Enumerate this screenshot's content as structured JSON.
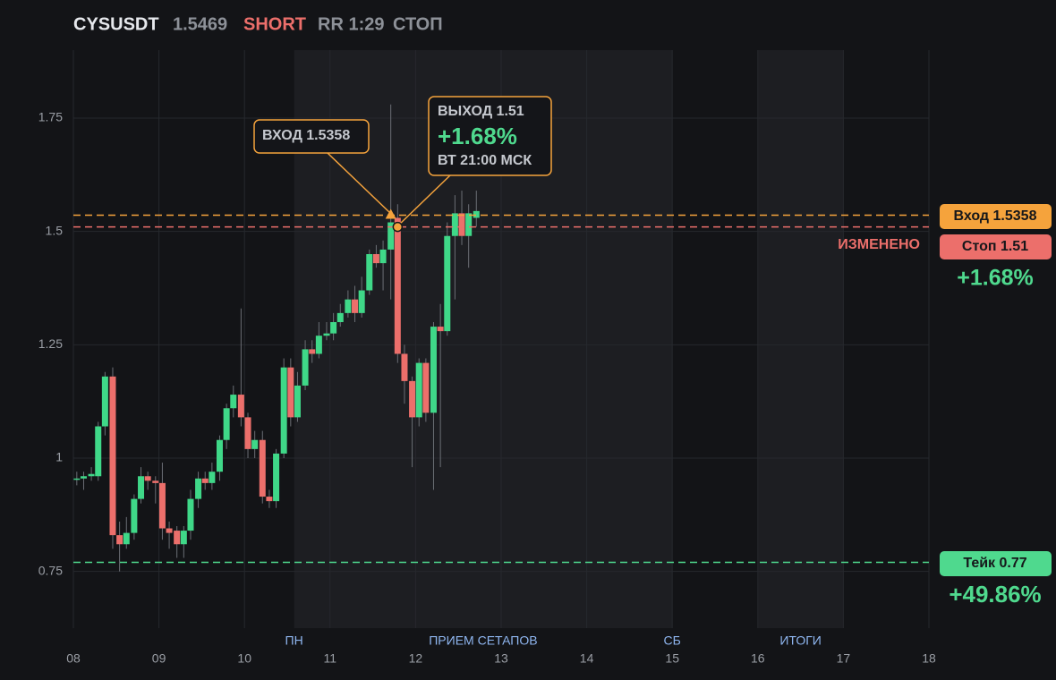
{
  "chart_data": {
    "type": "candlestick",
    "header": {
      "symbol": "CYSUSDT",
      "price": "1.5469",
      "side": "SHORT",
      "rr": "RR 1:29",
      "status": "СТОП"
    },
    "x": [
      8.04,
      8.12,
      8.21,
      8.29,
      8.37,
      8.46,
      8.54,
      8.62,
      8.71,
      8.79,
      8.87,
      8.96,
      9.04,
      9.12,
      9.21,
      9.29,
      9.37,
      9.46,
      9.54,
      9.62,
      9.71,
      9.79,
      9.87,
      9.96,
      10.04,
      10.12,
      10.21,
      10.29,
      10.37,
      10.46,
      10.54,
      10.62,
      10.71,
      10.79,
      10.87,
      10.96,
      11.04,
      11.12,
      11.21,
      11.29,
      11.37,
      11.46,
      11.54,
      11.62,
      11.71,
      11.79,
      11.87,
      11.96,
      12.04,
      12.12,
      12.21,
      12.29,
      12.37,
      12.46,
      12.54,
      12.62,
      12.71
    ],
    "open": [
      0.955,
      0.955,
      0.96,
      0.96,
      1.07,
      1.18,
      0.83,
      0.81,
      0.835,
      0.91,
      0.96,
      0.95,
      0.945,
      0.845,
      0.84,
      0.81,
      0.84,
      0.91,
      0.955,
      0.945,
      0.97,
      1.04,
      1.11,
      1.14,
      1.09,
      1.02,
      1.04,
      0.915,
      0.905,
      1.01,
      1.2,
      1.09,
      1.16,
      1.24,
      1.23,
      1.27,
      1.275,
      1.3,
      1.32,
      1.35,
      1.32,
      1.37,
      1.45,
      1.43,
      1.46,
      1.53,
      1.23,
      1.17,
      1.09,
      1.21,
      1.1,
      1.29,
      1.28,
      1.49,
      1.54,
      1.49,
      1.53
    ],
    "high": [
      0.97,
      0.97,
      0.98,
      1.08,
      1.19,
      1.2,
      0.86,
      0.87,
      0.92,
      0.98,
      0.97,
      0.96,
      0.99,
      0.86,
      0.85,
      0.85,
      0.93,
      0.97,
      0.97,
      0.99,
      1.05,
      1.12,
      1.16,
      1.33,
      1.1,
      1.06,
      1.06,
      0.93,
      1.02,
      1.22,
      1.22,
      1.19,
      1.26,
      1.26,
      1.3,
      1.3,
      1.32,
      1.34,
      1.37,
      1.38,
      1.4,
      1.46,
      1.47,
      1.48,
      1.78,
      1.56,
      1.25,
      1.18,
      1.22,
      1.22,
      1.3,
      1.34,
      1.52,
      1.58,
      1.59,
      1.56,
      1.59
    ],
    "low": [
      0.94,
      0.93,
      0.95,
      0.95,
      1.05,
      0.8,
      0.75,
      0.8,
      0.82,
      0.9,
      0.93,
      0.9,
      0.82,
      0.8,
      0.78,
      0.78,
      0.82,
      0.89,
      0.93,
      0.93,
      0.95,
      1.02,
      1.09,
      1.07,
      1.0,
      1.0,
      0.9,
      0.89,
      0.89,
      1.0,
      1.07,
      1.08,
      1.15,
      1.21,
      1.22,
      1.26,
      1.26,
      1.29,
      1.31,
      1.3,
      1.31,
      1.36,
      1.42,
      1.37,
      1.35,
      1.21,
      1.12,
      0.98,
      1.07,
      1.08,
      0.93,
      0.98,
      1.27,
      1.35,
      1.47,
      1.42,
      1.51
    ],
    "close": [
      0.955,
      0.96,
      0.965,
      1.07,
      1.18,
      0.83,
      0.81,
      0.835,
      0.91,
      0.96,
      0.95,
      0.945,
      0.845,
      0.835,
      0.81,
      0.84,
      0.91,
      0.955,
      0.945,
      0.97,
      1.04,
      1.11,
      1.14,
      1.09,
      1.02,
      1.04,
      0.915,
      0.905,
      1.01,
      1.2,
      1.09,
      1.16,
      1.24,
      1.23,
      1.27,
      1.275,
      1.3,
      1.32,
      1.35,
      1.32,
      1.37,
      1.45,
      1.43,
      1.46,
      1.52,
      1.23,
      1.17,
      1.09,
      1.21,
      1.1,
      1.29,
      1.28,
      1.49,
      1.54,
      1.49,
      1.54,
      1.545
    ],
    "up_color": "#3fd888",
    "down_color": "#ec6f6b",
    "xlim": [
      8,
      18
    ],
    "xticks": [
      {
        "value": 8,
        "label": "08"
      },
      {
        "value": 9,
        "label": "09"
      },
      10,
      11,
      12,
      13,
      14,
      15,
      16,
      17,
      18
    ],
    "ylim": [
      0.625,
      1.9
    ],
    "yticks": [
      0.75,
      1,
      1.25,
      1.5,
      1.75
    ],
    "grid": true,
    "shaded": [
      [
        10.58,
        15
      ],
      [
        16,
        17
      ]
    ],
    "sessions": [
      {
        "label": "ПН",
        "x": 10.58
      },
      {
        "label": "ПРИЕМ СЕТАПОВ",
        "x": 12.79
      },
      {
        "label": "СБ",
        "x": 15
      },
      {
        "label": "ИТОГИ",
        "x": 16.5
      }
    ],
    "levels": [
      {
        "value": 1.5358,
        "label": "Вход 1.5358",
        "color": "#f5a33c"
      },
      {
        "value": 1.51,
        "label": "Стоп 1.51",
        "color": "#ec6f6b",
        "note": "ИЗМЕНЕНО",
        "result": "+1.68%"
      },
      {
        "value": 0.77,
        "label": "Тейк 0.77",
        "color": "#4fd98e",
        "result": "+49.86%"
      }
    ],
    "entry": {
      "x": 11.71,
      "label": "ВХОД 1.5358"
    },
    "exit": {
      "x": 11.79,
      "label": "ВЫХОД 1.51",
      "pnl": "+1.68%",
      "time": "ВТ 21:00 МСК"
    }
  }
}
